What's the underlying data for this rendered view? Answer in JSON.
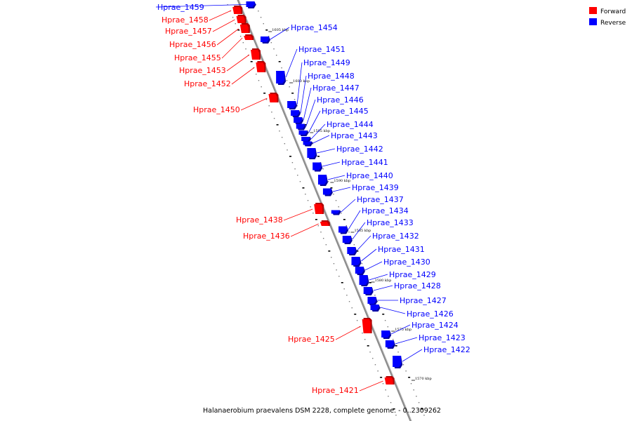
{
  "caption": "Halanaerobium praevalens DSM 2228, complete genome. - 0..2309262",
  "legend": {
    "forward_label": "Forward",
    "reverse_label": "Reverse",
    "forward_color": "#ff0000",
    "reverse_color": "#0000ff"
  },
  "colors": {
    "forward": "#ff0000",
    "forward_dark": "#b30000",
    "reverse": "#0000ff",
    "reverse_dark": "#0000a0",
    "backbone": "#8c8c8c"
  },
  "scale_labels": [
    "1605 kbp",
    "1600 kbp",
    "1595 kbp",
    "1590 kbp",
    "1585 kbp",
    "1580 kbp",
    "1575 kbp",
    "1570 kbp"
  ],
  "genes": [
    {
      "name": "Hprae_1459",
      "strand": "reverse"
    },
    {
      "name": "Hprae_1458",
      "strand": "forward"
    },
    {
      "name": "Hprae_1457",
      "strand": "forward"
    },
    {
      "name": "Hprae_1456",
      "strand": "forward"
    },
    {
      "name": "Hprae_1455",
      "strand": "forward"
    },
    {
      "name": "Hprae_1454",
      "strand": "reverse"
    },
    {
      "name": "Hprae_1453",
      "strand": "forward"
    },
    {
      "name": "Hprae_1452",
      "strand": "forward"
    },
    {
      "name": "Hprae_1451",
      "strand": "reverse"
    },
    {
      "name": "Hprae_1450",
      "strand": "forward"
    },
    {
      "name": "Hprae_1449",
      "strand": "reverse"
    },
    {
      "name": "Hprae_1448",
      "strand": "reverse"
    },
    {
      "name": "Hprae_1447",
      "strand": "reverse"
    },
    {
      "name": "Hprae_1446",
      "strand": "reverse"
    },
    {
      "name": "Hprae_1445",
      "strand": "reverse"
    },
    {
      "name": "Hprae_1444",
      "strand": "reverse"
    },
    {
      "name": "Hprae_1443",
      "strand": "reverse"
    },
    {
      "name": "Hprae_1442",
      "strand": "reverse"
    },
    {
      "name": "Hprae_1441",
      "strand": "reverse"
    },
    {
      "name": "Hprae_1440",
      "strand": "reverse"
    },
    {
      "name": "Hprae_1439",
      "strand": "reverse"
    },
    {
      "name": "Hprae_1438",
      "strand": "forward"
    },
    {
      "name": "Hprae_1437",
      "strand": "reverse"
    },
    {
      "name": "Hprae_1436",
      "strand": "forward"
    },
    {
      "name": "Hprae_1434",
      "strand": "reverse"
    },
    {
      "name": "Hprae_1433",
      "strand": "reverse"
    },
    {
      "name": "Hprae_1432",
      "strand": "reverse"
    },
    {
      "name": "Hprae_1431",
      "strand": "reverse"
    },
    {
      "name": "Hprae_1430",
      "strand": "reverse"
    },
    {
      "name": "Hprae_1429",
      "strand": "reverse"
    },
    {
      "name": "Hprae_1428",
      "strand": "reverse"
    },
    {
      "name": "Hprae_1427",
      "strand": "reverse"
    },
    {
      "name": "Hprae_1426",
      "strand": "reverse"
    },
    {
      "name": "Hprae_1425",
      "strand": "forward"
    },
    {
      "name": "Hprae_1424",
      "strand": "reverse"
    },
    {
      "name": "Hprae_1423",
      "strand": "reverse"
    },
    {
      "name": "Hprae_1422",
      "strand": "reverse"
    },
    {
      "name": "Hprae_1421",
      "strand": "forward"
    }
  ]
}
